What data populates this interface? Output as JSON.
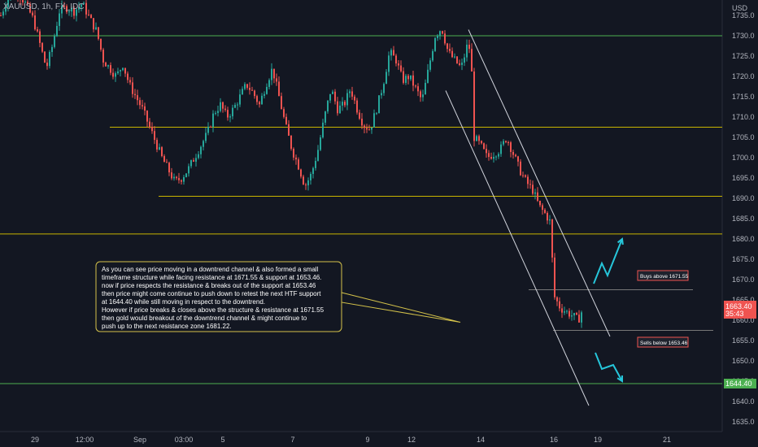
{
  "header": {
    "symbol": "XAUUSD, 1h, FX_IDC",
    "currency": "USD"
  },
  "chart_data": {
    "type": "candlestick",
    "y_axis": {
      "ticks": [
        1735,
        1730,
        1725,
        1720,
        1715,
        1710,
        1705,
        1700,
        1695,
        1690,
        1685,
        1680,
        1675,
        1670,
        1665,
        1660,
        1655,
        1650,
        1645,
        1640,
        1635
      ],
      "range": [
        1633,
        1738
      ]
    },
    "x_axis": {
      "ticks": [
        "29",
        "12:00",
        "Sep",
        "03:00",
        "5",
        "7",
        "9",
        "12",
        "14",
        "16",
        "19",
        "21"
      ]
    },
    "candle_path": [
      [
        0,
        1735
      ],
      [
        10,
        1740
      ],
      [
        20,
        1741
      ],
      [
        30,
        1738
      ],
      [
        40,
        1734
      ],
      [
        48,
        1728
      ],
      [
        56,
        1722
      ],
      [
        64,
        1728
      ],
      [
        72,
        1736
      ],
      [
        80,
        1737
      ],
      [
        90,
        1736
      ],
      [
        100,
        1738
      ],
      [
        110,
        1734
      ],
      [
        118,
        1731
      ],
      [
        126,
        1724
      ],
      [
        134,
        1722
      ],
      [
        142,
        1720
      ],
      [
        150,
        1723
      ],
      [
        158,
        1718
      ],
      [
        166,
        1715
      ],
      [
        174,
        1712
      ],
      [
        182,
        1708
      ],
      [
        190,
        1704
      ],
      [
        198,
        1700
      ],
      [
        206,
        1697
      ],
      [
        214,
        1694
      ],
      [
        222,
        1695
      ],
      [
        230,
        1697
      ],
      [
        238,
        1700
      ],
      [
        246,
        1703
      ],
      [
        254,
        1706
      ],
      [
        262,
        1711
      ],
      [
        270,
        1713
      ],
      [
        278,
        1710
      ],
      [
        286,
        1712
      ],
      [
        294,
        1715
      ],
      [
        302,
        1718
      ],
      [
        310,
        1716
      ],
      [
        318,
        1713
      ],
      [
        326,
        1718
      ],
      [
        334,
        1722
      ],
      [
        342,
        1715
      ],
      [
        350,
        1708
      ],
      [
        358,
        1702
      ],
      [
        366,
        1698
      ],
      [
        374,
        1693
      ],
      [
        382,
        1696
      ],
      [
        390,
        1702
      ],
      [
        398,
        1710
      ],
      [
        406,
        1717
      ],
      [
        414,
        1712
      ],
      [
        422,
        1713
      ],
      [
        430,
        1717
      ],
      [
        438,
        1712
      ],
      [
        446,
        1708
      ],
      [
        454,
        1707
      ],
      [
        462,
        1712
      ],
      [
        470,
        1718
      ],
      [
        478,
        1726
      ],
      [
        486,
        1724
      ],
      [
        494,
        1719
      ],
      [
        502,
        1720
      ],
      [
        510,
        1717
      ],
      [
        518,
        1714
      ],
      [
        526,
        1722
      ],
      [
        534,
        1730
      ],
      [
        542,
        1732
      ],
      [
        550,
        1726
      ],
      [
        558,
        1724
      ],
      [
        566,
        1722
      ],
      [
        574,
        1728
      ],
      [
        578,
        1726
      ],
      [
        582,
        1705
      ],
      [
        590,
        1703
      ],
      [
        598,
        1700
      ],
      [
        606,
        1701
      ],
      [
        614,
        1702
      ],
      [
        622,
        1705
      ],
      [
        630,
        1701
      ],
      [
        638,
        1697
      ],
      [
        646,
        1694
      ],
      [
        654,
        1692
      ],
      [
        662,
        1688
      ],
      [
        670,
        1686
      ],
      [
        676,
        1684
      ],
      [
        680,
        1666
      ],
      [
        688,
        1663
      ],
      [
        696,
        1662
      ],
      [
        704,
        1661
      ],
      [
        710,
        1660
      ],
      [
        716,
        1663
      ]
    ],
    "levels": [
      {
        "price": 1730,
        "color": "#4caf50",
        "x_start": 0
      },
      {
        "price": 1707.5,
        "color": "#c8b400",
        "x_start": 135
      },
      {
        "price": 1690.5,
        "color": "#c8b400",
        "x_start": 195
      },
      {
        "price": 1681.22,
        "color": "#c8b400",
        "x_start": 0
      },
      {
        "price": 1667.5,
        "color": "#777777",
        "x_start": 650,
        "x_end": 852
      },
      {
        "price": 1657.5,
        "color": "#777777",
        "x_start": 680,
        "x_end": 877
      },
      {
        "price": 1644.4,
        "color": "#4caf50",
        "x_start": 0
      }
    ],
    "channel": [
      {
        "x0": 576,
        "p0": 1731.5,
        "x1": 750,
        "p1": 1656
      },
      {
        "x0": 548,
        "p0": 1716.5,
        "x1": 724,
        "p1": 1639
      }
    ],
    "projections": [
      {
        "name": "up-projection",
        "color": "#26c6da",
        "points": [
          [
            730,
            1669
          ],
          [
            740,
            1674
          ],
          [
            747,
            1671
          ],
          [
            765,
            1680
          ]
        ]
      },
      {
        "name": "down-projection",
        "color": "#26c6da",
        "points": [
          [
            732,
            1652
          ],
          [
            740,
            1648
          ],
          [
            754,
            1649
          ],
          [
            765,
            1645
          ]
        ]
      }
    ],
    "annotations": {
      "note": {
        "lines": [
          "As you can see price moving in a downtrend channel & also formed a small",
          "timeframe structure while facing resistance at 1671.55 & support at 1653.46.",
          "now if price respects the resistance & breaks out of the support at 1653.46",
          "then price might come continue to push down to retest the next HTF support",
          "at 1644.40 while still moving in respect to the downtrend.",
          "However if price breaks & closes above the structure & resistance at 1671.55",
          "then gold would breakout of the downtrend channel & might continue to",
          "push up to the next resistance  zone 1681.22."
        ],
        "pointer_price": 1659.5
      },
      "buys_label": "Buys above 1671.55",
      "sells_label": "Sells below 1653.46"
    },
    "price_badges": [
      {
        "text": "1663.40",
        "subtext": "35:43",
        "price": 1663.4,
        "color": "#ef5350"
      },
      {
        "text": "1644.40",
        "price": 1644.4,
        "color": "#4caf50"
      }
    ],
    "colors": {
      "background": "#131722",
      "up": "#26a69a",
      "down": "#ef5350",
      "axis_text": "#b2b5be",
      "note_border": "#d4c24a",
      "note_bg": "#131722",
      "note_text": "#ffffff"
    }
  }
}
